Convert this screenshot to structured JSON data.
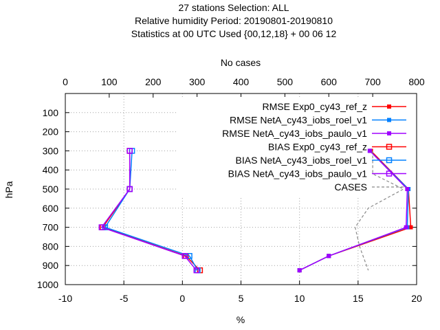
{
  "chart_data": {
    "type": "line",
    "title_lines": [
      "27 stations Selection: ALL",
      "Relative humidity  Period: 20190801-20190810",
      "Statistics at 00 UTC  Used {00,12,18} + 00 06 12"
    ],
    "x2label": "No cases",
    "xlabel": "%",
    "ylabel": "hPa",
    "xlim": [
      -10,
      20
    ],
    "x2lim": [
      0,
      800
    ],
    "ylim": [
      1000,
      0
    ],
    "y_reversed": true,
    "xticks": [
      "-10",
      "-5",
      "0",
      "5",
      "10",
      "15",
      "20"
    ],
    "x2ticks": [
      "0",
      "100",
      "200",
      "300",
      "400",
      "500",
      "600",
      "700",
      "800"
    ],
    "yticks": [
      "100",
      "200",
      "300",
      "400",
      "500",
      "600",
      "700",
      "800",
      "900",
      "1000"
    ],
    "grid": true,
    "legend_position": "top-right",
    "series": [
      {
        "name": "RMSE Exp0_cy43_ref_z",
        "color": "#ff0000",
        "marker": "filled-square",
        "dash": "solid",
        "y": [
          300,
          500,
          700,
          850,
          925
        ],
        "x": [
          16.1,
          19.3,
          19.5,
          12.5,
          10.0
        ]
      },
      {
        "name": "RMSE NetA_cy43_iobs_roel_v1",
        "color": "#0080ff",
        "marker": "filled-square",
        "dash": "solid",
        "y": [
          300,
          500,
          700,
          850,
          925
        ],
        "x": [
          16.0,
          19.3,
          19.2,
          12.5,
          10.0
        ]
      },
      {
        "name": "RMSE NetA_cy43_iobs_paulo_v1",
        "color": "#a000ff",
        "marker": "filled-square",
        "dash": "solid",
        "y": [
          300,
          500,
          700,
          850,
          925
        ],
        "x": [
          16.0,
          19.2,
          19.1,
          12.5,
          10.0
        ]
      },
      {
        "name": "BIAS Exp0_cy43_ref_z",
        "color": "#ff0000",
        "marker": "open-square",
        "dash": "solid",
        "y": [
          300,
          500,
          700,
          850,
          925
        ],
        "x": [
          -4.5,
          -4.5,
          -6.8,
          0.3,
          1.5
        ]
      },
      {
        "name": "BIAS NetA_cy43_iobs_roel_v1",
        "color": "#0080ff",
        "marker": "open-square",
        "dash": "solid",
        "y": [
          300,
          500,
          700,
          850,
          925
        ],
        "x": [
          -4.3,
          -4.5,
          -6.6,
          0.6,
          1.3
        ]
      },
      {
        "name": "BIAS NetA_cy43_iobs_paulo_v1",
        "color": "#a000ff",
        "marker": "open-square",
        "dash": "solid",
        "y": [
          300,
          500,
          700,
          850,
          925
        ],
        "x": [
          -4.5,
          -4.5,
          -6.9,
          0.2,
          1.2
        ]
      },
      {
        "name": "CASES",
        "color": "#888888",
        "marker": "none",
        "dash": "dashed",
        "axis": "x2",
        "y": [
          300,
          420,
          500,
          600,
          700,
          800,
          925
        ],
        "x": [
          700,
          700,
          770,
          690,
          660,
          670,
          690
        ]
      }
    ]
  }
}
